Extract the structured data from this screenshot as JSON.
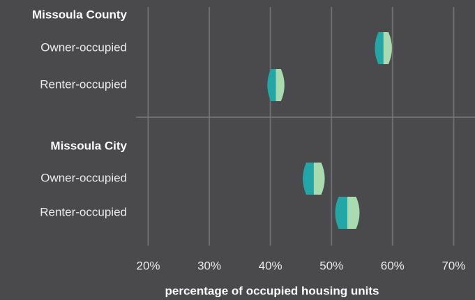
{
  "chart_data": {
    "type": "range",
    "groups": [
      {
        "name": "Missoula County",
        "categories": [
          "Owner-occupied",
          "Renter-occupied"
        ],
        "values": [
          58.5,
          40.9
        ],
        "errors": [
          1.4,
          1.4
        ]
      },
      {
        "name": "Missoula City",
        "categories": [
          "Owner-occupied",
          "Renter-occupied"
        ],
        "values": [
          47.1,
          52.6
        ],
        "errors": [
          1.8,
          2.0
        ]
      }
    ],
    "colors": [
      "#23a6a6",
      "#a8dcb0"
    ],
    "xlim": [
      18,
      73.5
    ],
    "xticks": [
      {
        "value": 20,
        "label": "20%"
      },
      {
        "value": 30,
        "label": "30%"
      },
      {
        "value": 40,
        "label": "40%"
      },
      {
        "value": 50,
        "label": "50%"
      },
      {
        "value": 60,
        "label": "60%"
      },
      {
        "value": 70,
        "label": "70%"
      }
    ],
    "xlabel": "percentage of occupied housing units",
    "grid": true
  }
}
